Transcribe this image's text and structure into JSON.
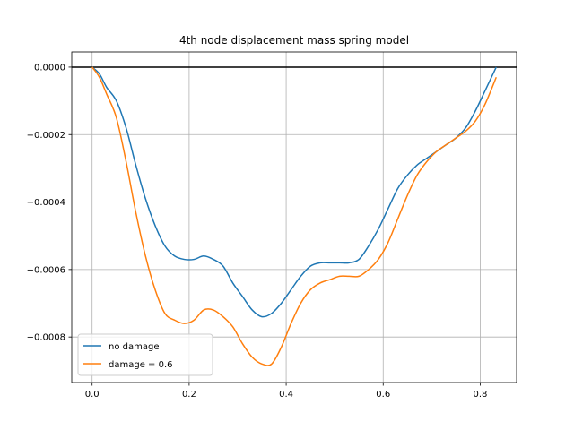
{
  "chart_data": {
    "type": "line",
    "title": "4th node displacement mass spring model",
    "xlabel": "",
    "ylabel": "",
    "xlim": [
      -0.042,
      0.875
    ],
    "ylim": [
      -0.000935,
      4.5e-05
    ],
    "xticks": [
      0.0,
      0.2,
      0.4,
      0.6,
      0.8
    ],
    "xtick_labels": [
      "0.0",
      "0.2",
      "0.4",
      "0.6",
      "0.8"
    ],
    "yticks": [
      0.0,
      -0.0002,
      -0.0004,
      -0.0006,
      -0.0008
    ],
    "ytick_labels": [
      "0.0000",
      "−0.0002",
      "−0.0004",
      "−0.0006",
      "−0.0008"
    ],
    "grid": true,
    "zero_line": true,
    "legend_position": "lower-left",
    "series": [
      {
        "name": "no damage",
        "color": "#1f77b4",
        "x": [
          0.0,
          0.015,
          0.03,
          0.05,
          0.07,
          0.09,
          0.11,
          0.13,
          0.15,
          0.17,
          0.19,
          0.21,
          0.23,
          0.25,
          0.27,
          0.29,
          0.31,
          0.33,
          0.35,
          0.37,
          0.39,
          0.41,
          0.43,
          0.45,
          0.47,
          0.49,
          0.51,
          0.53,
          0.55,
          0.57,
          0.59,
          0.61,
          0.63,
          0.65,
          0.67,
          0.69,
          0.71,
          0.73,
          0.75,
          0.77,
          0.79,
          0.81,
          0.833
        ],
        "y": [
          0.0,
          -2e-05,
          -6e-05,
          -0.0001,
          -0.00018,
          -0.00029,
          -0.00039,
          -0.00047,
          -0.00053,
          -0.00056,
          -0.00057,
          -0.00057,
          -0.00056,
          -0.00057,
          -0.00059,
          -0.00064,
          -0.00068,
          -0.00072,
          -0.00074,
          -0.00073,
          -0.0007,
          -0.00066,
          -0.00062,
          -0.00059,
          -0.00058,
          -0.00058,
          -0.00058,
          -0.00058,
          -0.00057,
          -0.00053,
          -0.00048,
          -0.00042,
          -0.00036,
          -0.00032,
          -0.00029,
          -0.00027,
          -0.00025,
          -0.00023,
          -0.00021,
          -0.00018,
          -0.00013,
          -7e-05,
          0.0
        ]
      },
      {
        "name": "damage = 0.6",
        "color": "#ff7f0e",
        "x": [
          0.0,
          0.015,
          0.03,
          0.05,
          0.07,
          0.09,
          0.11,
          0.13,
          0.15,
          0.17,
          0.19,
          0.21,
          0.23,
          0.25,
          0.27,
          0.29,
          0.31,
          0.33,
          0.35,
          0.37,
          0.39,
          0.41,
          0.43,
          0.45,
          0.47,
          0.49,
          0.51,
          0.53,
          0.55,
          0.57,
          0.59,
          0.61,
          0.63,
          0.65,
          0.67,
          0.69,
          0.71,
          0.73,
          0.75,
          0.77,
          0.79,
          0.81,
          0.833
        ],
        "y": [
          0.0,
          -3e-05,
          -8e-05,
          -0.00015,
          -0.00028,
          -0.00043,
          -0.00056,
          -0.00066,
          -0.00073,
          -0.00075,
          -0.00076,
          -0.00075,
          -0.00072,
          -0.00072,
          -0.00074,
          -0.00077,
          -0.00082,
          -0.00086,
          -0.00088,
          -0.00088,
          -0.00083,
          -0.00076,
          -0.0007,
          -0.00066,
          -0.00064,
          -0.00063,
          -0.00062,
          -0.00062,
          -0.00062,
          -0.0006,
          -0.00057,
          -0.00052,
          -0.00045,
          -0.00038,
          -0.00032,
          -0.00028,
          -0.00025,
          -0.00023,
          -0.00021,
          -0.00019,
          -0.00016,
          -0.00011,
          -3e-05
        ]
      }
    ]
  }
}
